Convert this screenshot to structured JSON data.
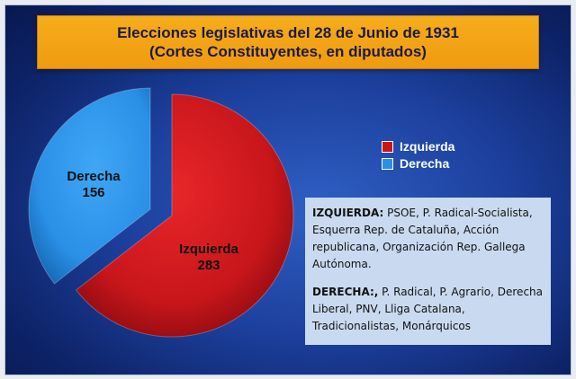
{
  "title": {
    "line1": "Elecciones legislativas del 28 de Junio de 1931",
    "line2": "(Cortes Constituyentes, en diputados)"
  },
  "chart_data": {
    "type": "pie",
    "title": "Elecciones legislativas del 28 de Junio de 1931 (Cortes Constituyentes, en diputados)",
    "categories": [
      "Izquierda",
      "Derecha"
    ],
    "values": [
      283,
      156
    ],
    "colors": [
      "#c8161b",
      "#2a8fe6"
    ],
    "legend_position": "right",
    "legend": [
      "Izquierda",
      "Derecha"
    ]
  },
  "slice_labels": {
    "izquierda": {
      "name": "Izquierda",
      "value": "283"
    },
    "derecha": {
      "name": "Derecha",
      "value": "156"
    }
  },
  "info": {
    "izquierda_head": "IZQUIERDA:",
    "izquierda_text": " PSOE, P. Radical-Socialista, Esquerra Rep. de Cataluña, Acción republicana, Organización Rep. Gallega Autónoma.",
    "derecha_head": "DERECHA:,",
    "derecha_text": " P. Radical, P. Agrario, Derecha Liberal, PNV, Lliga Catalana, Tradicionalistas, Monárquicos"
  }
}
